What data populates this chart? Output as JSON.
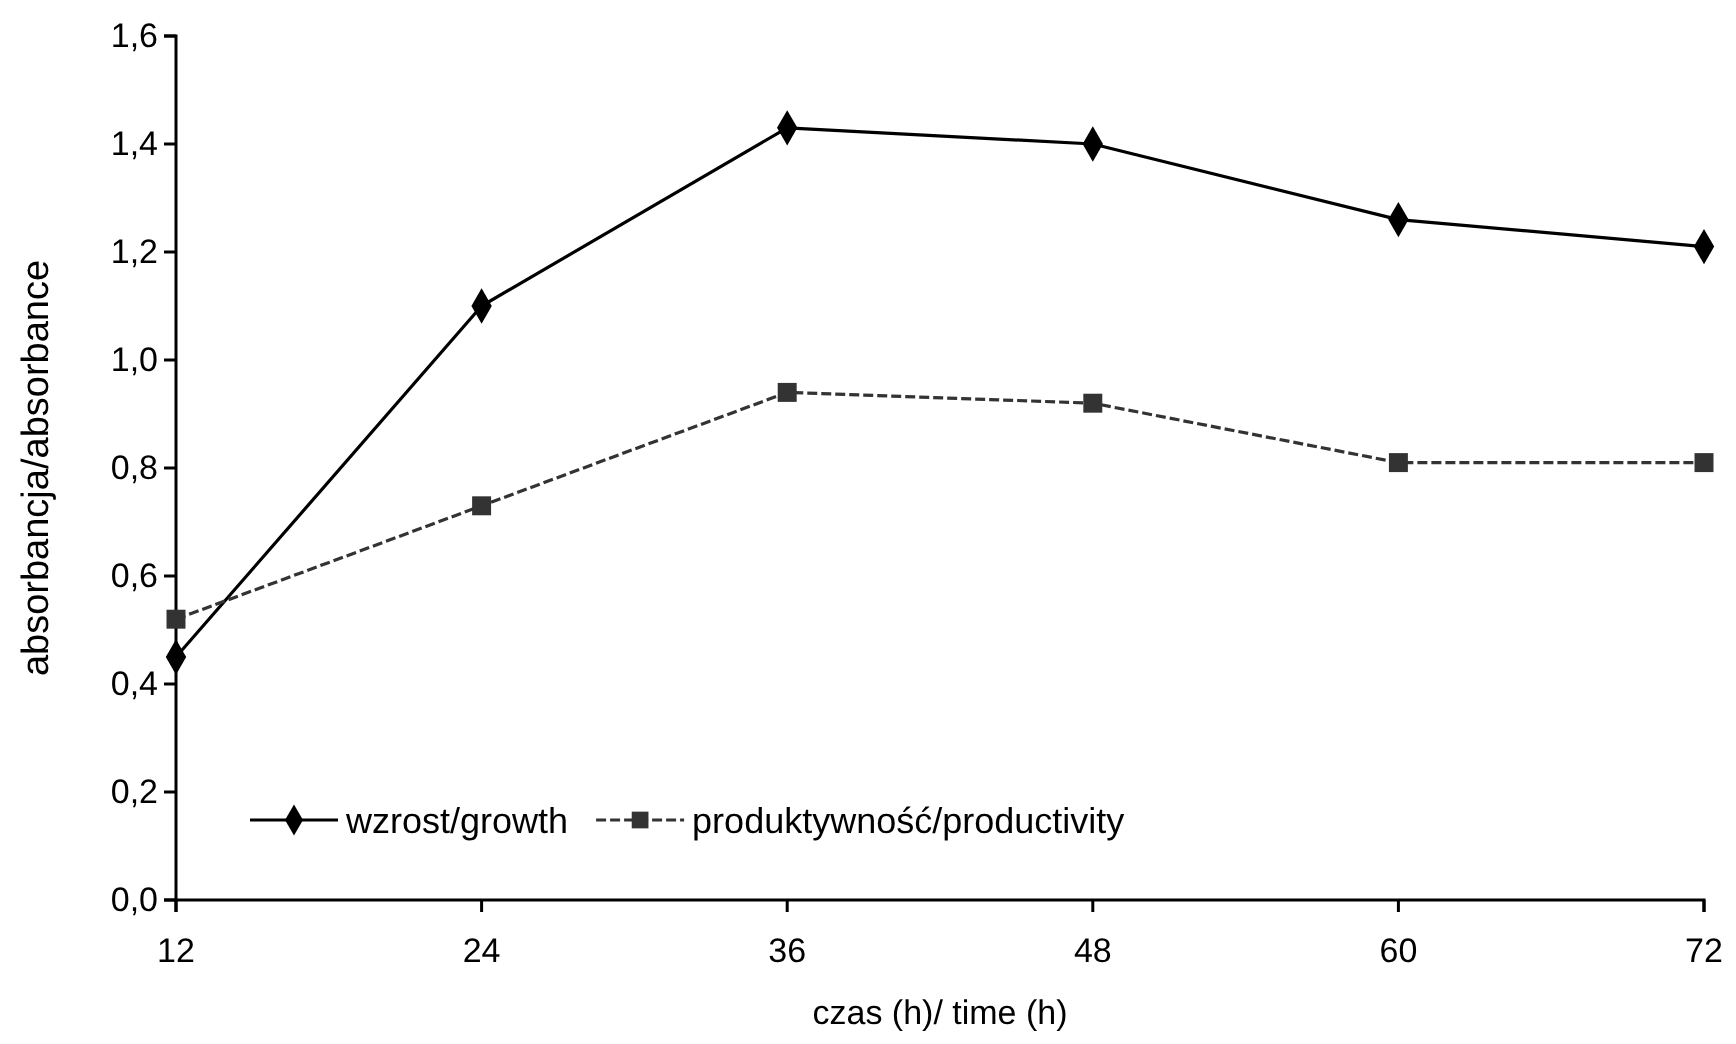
{
  "chart_data": {
    "type": "line",
    "xlabel": "czas (h)/ time (h)",
    "ylabel": "absorbancja/absorbance",
    "x": [
      12,
      24,
      36,
      48,
      60,
      72
    ],
    "xlim": [
      12,
      72
    ],
    "xticks": [
      12,
      24,
      36,
      48,
      60,
      72
    ],
    "ylim": [
      0,
      1.6
    ],
    "yticks": [
      {
        "value": 0,
        "label": "0,0"
      },
      {
        "value": 0.2,
        "label": "0,2"
      },
      {
        "value": 0.4,
        "label": "0,4"
      },
      {
        "value": 0.6,
        "label": "0,6"
      },
      {
        "value": 0.8,
        "label": "0,8"
      },
      {
        "value": 1.0,
        "label": "1,0"
      },
      {
        "value": 1.2,
        "label": "1,2"
      },
      {
        "value": 1.4,
        "label": "1,4"
      },
      {
        "value": 1.6,
        "label": "1,6"
      }
    ],
    "grid": false,
    "legend": "bottom left",
    "series": [
      {
        "name": "wzrost/growth",
        "color": "#000000",
        "marker": "diamond",
        "line_style": "solid",
        "values": [
          0.45,
          1.1,
          1.43,
          1.4,
          1.26,
          1.21
        ]
      },
      {
        "name": "produktywność/productivity",
        "color": "#333333",
        "marker": "square",
        "line_style": "dashed",
        "values": [
          0.52,
          0.73,
          0.94,
          0.92,
          0.81,
          0.81
        ]
      }
    ]
  }
}
